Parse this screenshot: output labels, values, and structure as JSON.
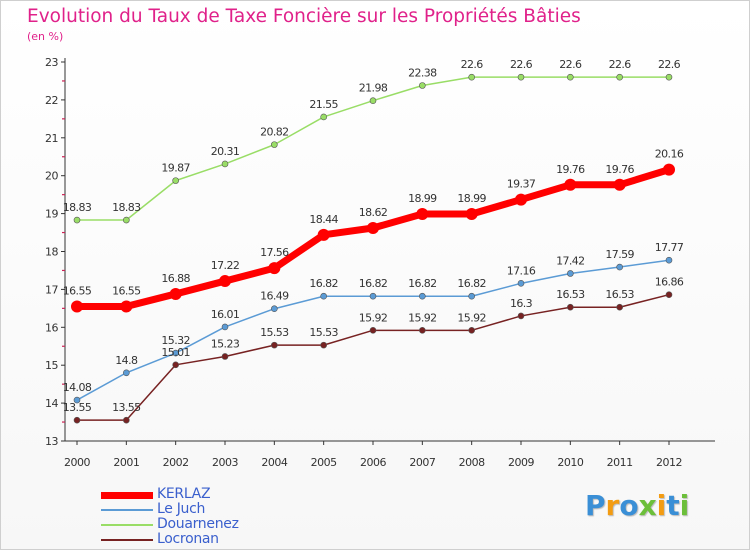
{
  "title": "Evolution du Taux de Taxe Foncière sur les Propriétés Bâties",
  "subtitle": "(en %)",
  "brand": "Proxiti",
  "colors": {
    "title": "#e0218a",
    "axis": "#333333",
    "tick_marks": "#cc2255",
    "KERLAZ": "#ff0000",
    "Le Juch": "#5b9bd5",
    "Douarnenez": "#99dd66",
    "Locronan": "#772222"
  },
  "chart_data": {
    "type": "line",
    "title": "Evolution du Taux de Taxe Foncière sur les Propriétés Bâties",
    "ylabel": "(en %)",
    "xlabel": "",
    "x": [
      "2000",
      "2001",
      "2002",
      "2003",
      "2004",
      "2005",
      "2006",
      "2007",
      "2008",
      "2009",
      "2010",
      "2011",
      "2012"
    ],
    "ylim": [
      13,
      23
    ],
    "yticks": [
      "13",
      "14",
      "15",
      "16",
      "17",
      "18",
      "19",
      "20",
      "21",
      "22",
      "23"
    ],
    "legend_position": "bottom-left",
    "series": [
      {
        "name": "KERLAZ",
        "values": [
          16.55,
          16.55,
          16.88,
          17.22,
          17.56,
          18.44,
          18.62,
          18.99,
          18.99,
          19.37,
          19.76,
          19.76,
          20.16
        ],
        "labels": [
          "16.55",
          "16.55",
          "16.88",
          "17.22",
          "17.56",
          "18.44",
          "18.62",
          "18.99",
          "18.99",
          "19.37",
          "19.76",
          "19.76",
          "20.16"
        ]
      },
      {
        "name": "Le Juch",
        "values": [
          14.08,
          14.8,
          15.32,
          16.01,
          16.49,
          16.82,
          16.82,
          16.82,
          16.82,
          17.16,
          17.42,
          17.59,
          17.77
        ],
        "labels": [
          "14.08",
          "14.8",
          "15.32",
          "16.01",
          "16.49",
          "16.82",
          "16.82",
          "16.82",
          "16.82",
          "17.16",
          "17.42",
          "17.59",
          "17.77"
        ]
      },
      {
        "name": "Douarnenez",
        "values": [
          18.83,
          18.83,
          19.87,
          20.31,
          20.82,
          21.55,
          21.98,
          22.38,
          22.6,
          22.6,
          22.6,
          22.6,
          22.6
        ],
        "labels": [
          "18.83",
          "18.83",
          "19.87",
          "20.31",
          "20.82",
          "21.55",
          "21.98",
          "22.38",
          "22.6",
          "22.6",
          "22.6",
          "22.6",
          "22.6"
        ]
      },
      {
        "name": "Locronan",
        "values": [
          13.55,
          13.55,
          15.01,
          15.23,
          15.53,
          15.53,
          15.92,
          15.92,
          15.92,
          16.3,
          16.53,
          16.53,
          16.86
        ],
        "labels": [
          "13.55",
          "13.55",
          "15.01",
          "15.23",
          "15.53",
          "15.53",
          "15.92",
          "15.92",
          "15.92",
          "16.3",
          "16.53",
          "16.53",
          "16.86"
        ]
      }
    ]
  }
}
